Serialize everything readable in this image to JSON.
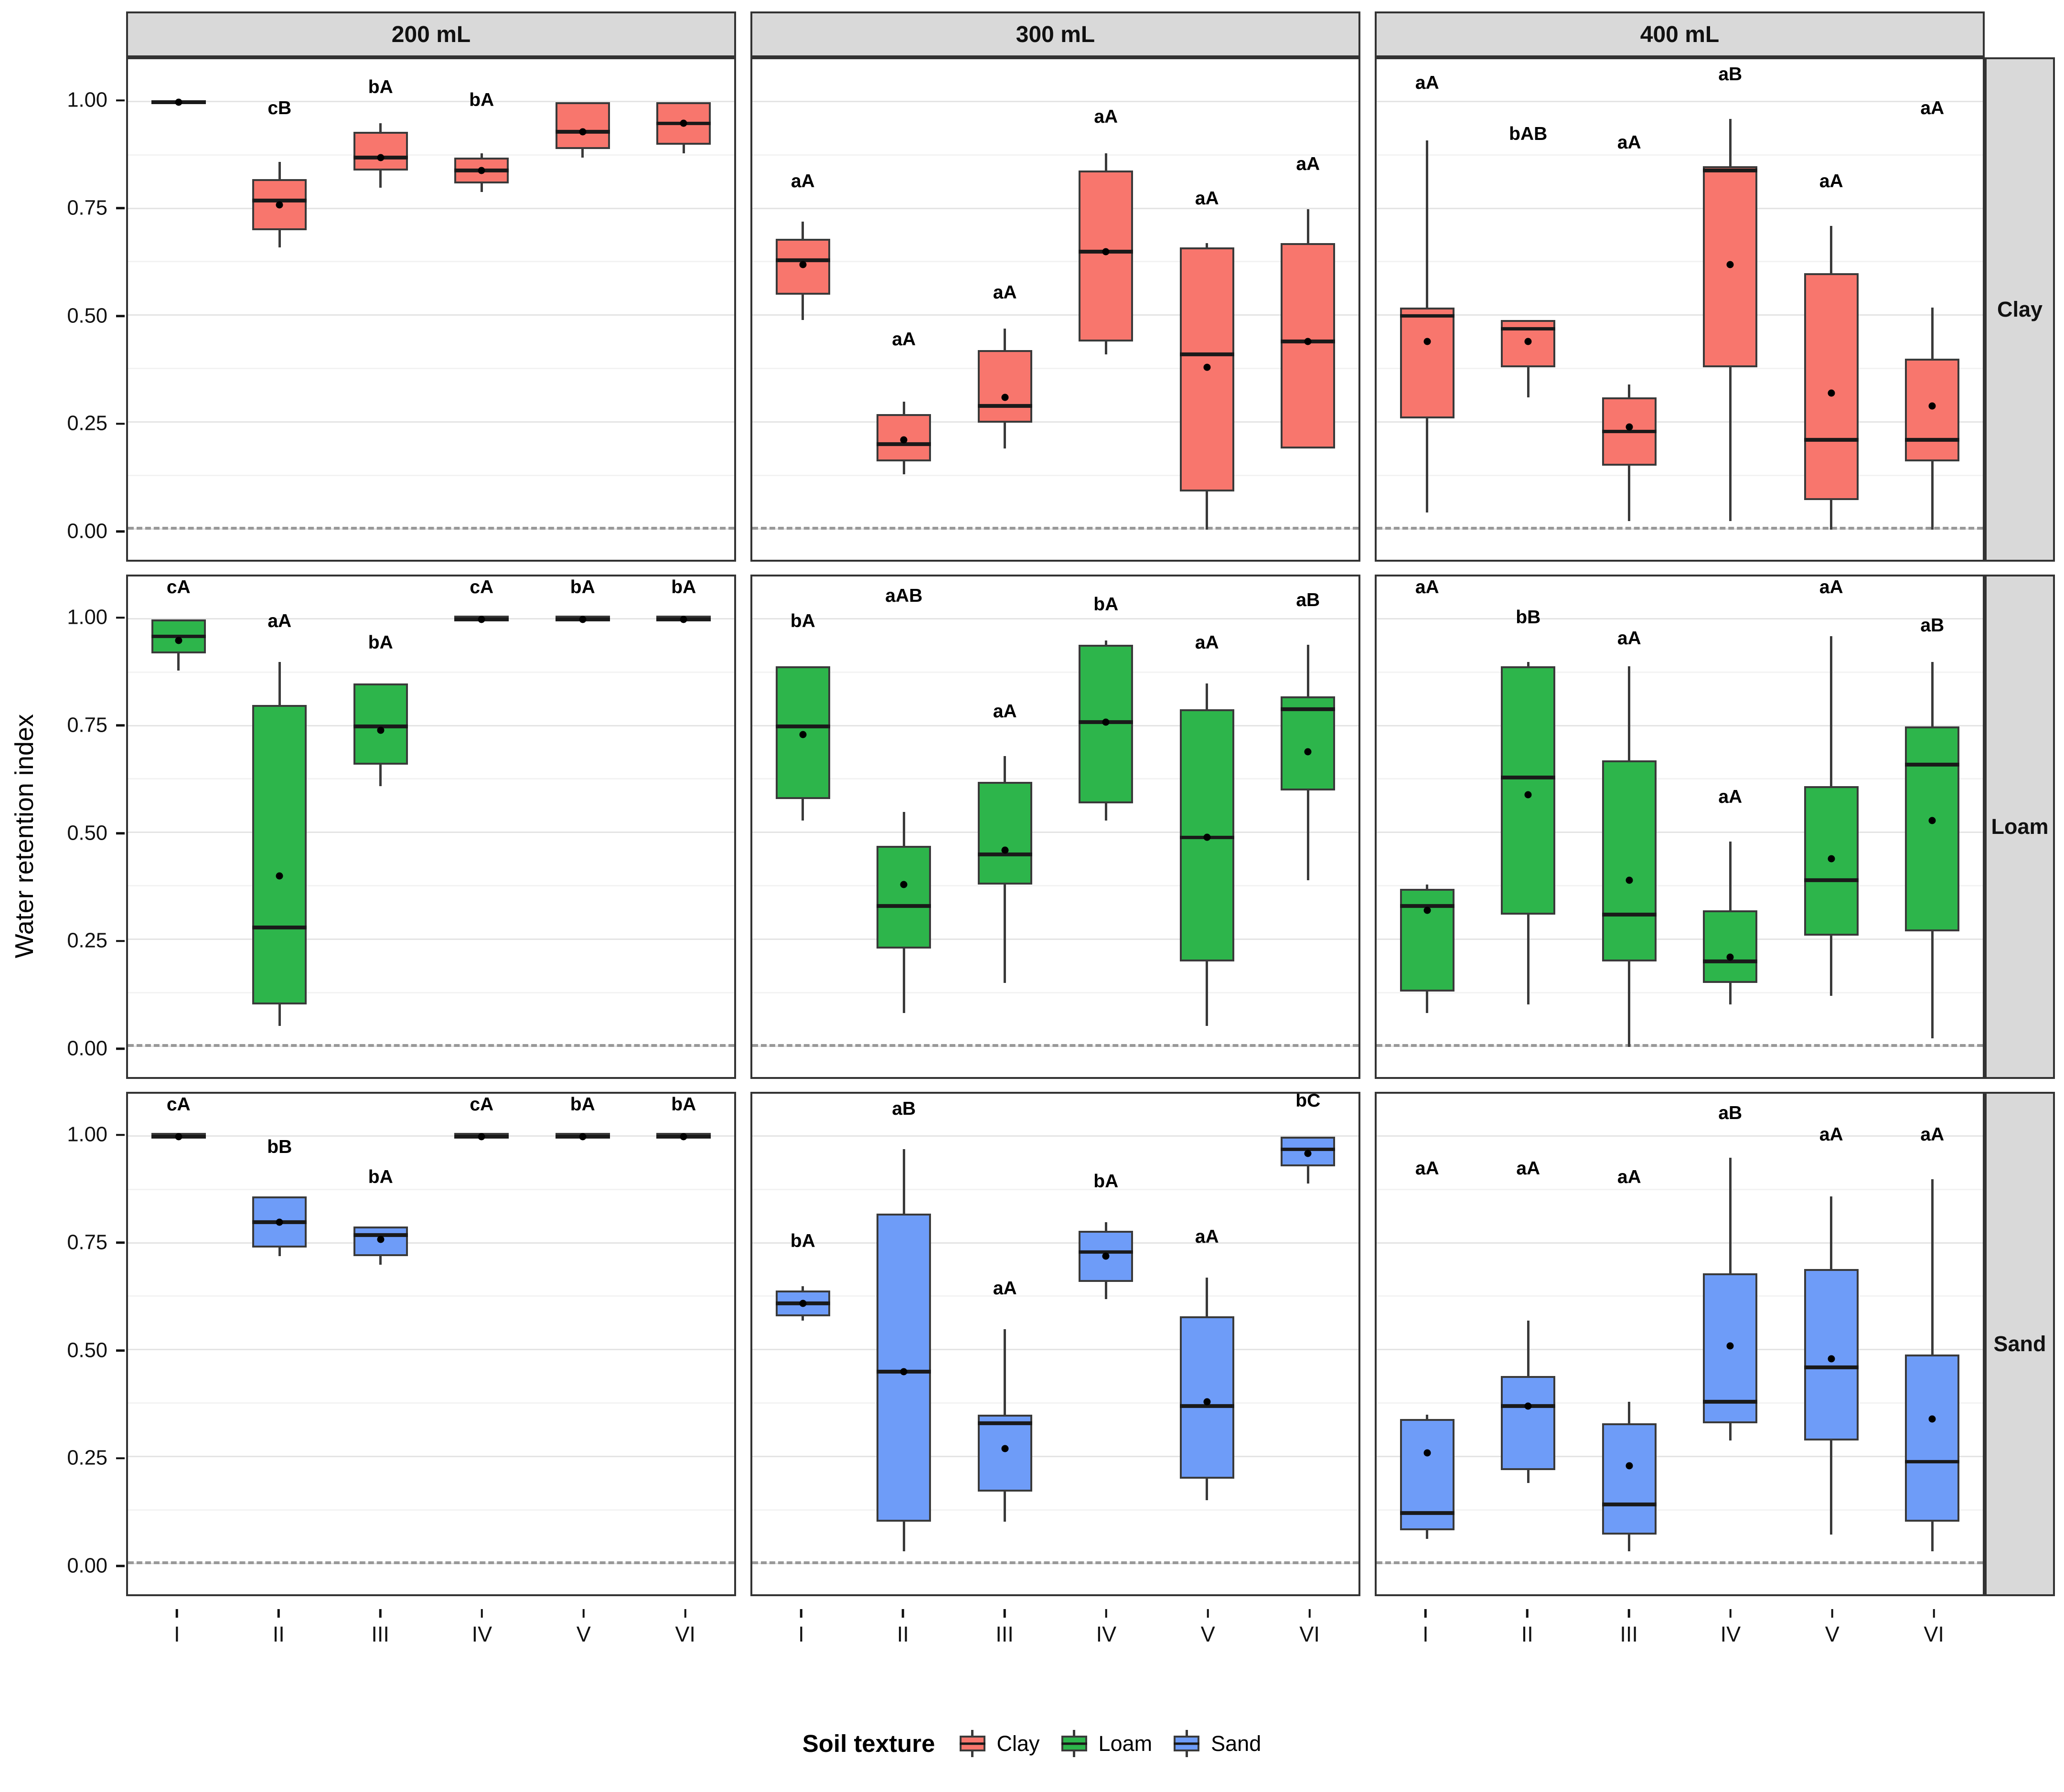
{
  "y_axis": {
    "title": "Water retention index",
    "ticks": [
      {
        "label": "1.00",
        "value": 1.0
      },
      {
        "label": "0.75",
        "value": 0.75
      },
      {
        "label": "0.50",
        "value": 0.5
      },
      {
        "label": "0.25",
        "value": 0.25
      },
      {
        "label": "0.00",
        "value": 0.0
      }
    ]
  },
  "x_axis": {
    "categories": [
      "I",
      "II",
      "III",
      "IV",
      "V",
      "VI"
    ]
  },
  "facets": {
    "columns": [
      "200 mL",
      "300 mL",
      "400 mL"
    ],
    "rows": [
      "Clay",
      "Loam",
      "Sand"
    ]
  },
  "legend": {
    "title": "Soil texture",
    "items": [
      {
        "label": "Clay",
        "color": "#F8766D"
      },
      {
        "label": "Loam",
        "color": "#2DB54B"
      },
      {
        "label": "Sand",
        "color": "#6E9CF8"
      }
    ]
  },
  "chart_data": {
    "type": "boxplot",
    "title": "",
    "ylabel": "Water retention index",
    "y_range": [
      -0.07,
      1.1
    ],
    "y_major_gridlines": [
      0,
      0.25,
      0.5,
      0.75,
      1.0
    ],
    "y_minor_gridlines": [
      0.125,
      0.375,
      0.625,
      0.875
    ],
    "reference_line_y": 0,
    "facet_columns": [
      "200 mL",
      "300 mL",
      "400 mL"
    ],
    "facet_rows": [
      "Clay",
      "Loam",
      "Sand"
    ],
    "x_categories": [
      "I",
      "II",
      "III",
      "IV",
      "V",
      "VI"
    ],
    "panels": [
      {
        "row": "Clay",
        "column": "200 mL",
        "color": "#F8766D",
        "boxes": [
          {
            "x": "I",
            "low": 0.995,
            "q1": 0.995,
            "median": 1.0,
            "q3": 1.0,
            "high": 1.0,
            "mean": 1.0,
            "label": "",
            "label_y": 0
          },
          {
            "x": "II",
            "low": 0.66,
            "q1": 0.7,
            "median": 0.77,
            "q3": 0.82,
            "high": 0.86,
            "mean": 0.76,
            "label": "cB",
            "label_y": 0.96
          },
          {
            "x": "III",
            "low": 0.8,
            "q1": 0.84,
            "median": 0.87,
            "q3": 0.93,
            "high": 0.95,
            "mean": 0.87,
            "label": "bA",
            "label_y": 1.01
          },
          {
            "x": "IV",
            "low": 0.79,
            "q1": 0.81,
            "median": 0.84,
            "q3": 0.87,
            "high": 0.88,
            "mean": 0.84,
            "label": "bA",
            "label_y": 0.98
          },
          {
            "x": "V",
            "low": 0.87,
            "q1": 0.89,
            "median": 0.93,
            "q3": 1.0,
            "high": 1.0,
            "mean": 0.93,
            "label": "",
            "label_y": 0
          },
          {
            "x": "VI",
            "low": 0.88,
            "q1": 0.9,
            "median": 0.95,
            "q3": 1.0,
            "high": 1.0,
            "mean": 0.95,
            "label": "",
            "label_y": 0
          }
        ]
      },
      {
        "row": "Clay",
        "column": "300 mL",
        "color": "#F8766D",
        "boxes": [
          {
            "x": "I",
            "low": 0.49,
            "q1": 0.55,
            "median": 0.63,
            "q3": 0.68,
            "high": 0.72,
            "mean": 0.62,
            "label": "aA",
            "label_y": 0.79
          },
          {
            "x": "II",
            "low": 0.13,
            "q1": 0.16,
            "median": 0.2,
            "q3": 0.27,
            "high": 0.3,
            "mean": 0.21,
            "label": "aA",
            "label_y": 0.42
          },
          {
            "x": "III",
            "low": 0.19,
            "q1": 0.25,
            "median": 0.29,
            "q3": 0.42,
            "high": 0.47,
            "mean": 0.31,
            "label": "aA",
            "label_y": 0.53
          },
          {
            "x": "IV",
            "low": 0.41,
            "q1": 0.44,
            "median": 0.65,
            "q3": 0.84,
            "high": 0.88,
            "mean": 0.65,
            "label": "aA",
            "label_y": 0.94
          },
          {
            "x": "V",
            "low": 0.0,
            "q1": 0.09,
            "median": 0.41,
            "q3": 0.66,
            "high": 0.67,
            "mean": 0.38,
            "label": "aA",
            "label_y": 0.75
          },
          {
            "x": "VI",
            "low": 0.19,
            "q1": 0.19,
            "median": 0.44,
            "q3": 0.67,
            "high": 0.75,
            "mean": 0.44,
            "label": "aA",
            "label_y": 0.83
          }
        ]
      },
      {
        "row": "Clay",
        "column": "400 mL",
        "color": "#F8766D",
        "boxes": [
          {
            "x": "I",
            "low": 0.04,
            "q1": 0.26,
            "median": 0.5,
            "q3": 0.52,
            "high": 0.91,
            "mean": 0.44,
            "label": "aA",
            "label_y": 1.02
          },
          {
            "x": "II",
            "low": 0.31,
            "q1": 0.38,
            "median": 0.47,
            "q3": 0.49,
            "high": 0.49,
            "mean": 0.44,
            "label": "bAB",
            "label_y": 0.9
          },
          {
            "x": "III",
            "low": 0.02,
            "q1": 0.15,
            "median": 0.23,
            "q3": 0.31,
            "high": 0.34,
            "mean": 0.24,
            "label": "aA",
            "label_y": 0.88
          },
          {
            "x": "IV",
            "low": 0.02,
            "q1": 0.38,
            "median": 0.84,
            "q3": 0.85,
            "high": 0.96,
            "mean": 0.62,
            "label": "aB",
            "label_y": 1.04
          },
          {
            "x": "V",
            "low": 0.0,
            "q1": 0.07,
            "median": 0.21,
            "q3": 0.6,
            "high": 0.71,
            "mean": 0.32,
            "label": "aA",
            "label_y": 0.79
          },
          {
            "x": "VI",
            "low": 0.0,
            "q1": 0.16,
            "median": 0.21,
            "q3": 0.4,
            "high": 0.52,
            "mean": 0.29,
            "label": "aA",
            "label_y": 0.96
          }
        ]
      },
      {
        "row": "Loam",
        "column": "200 mL",
        "color": "#2DB54B",
        "boxes": [
          {
            "x": "I",
            "low": 0.88,
            "q1": 0.92,
            "median": 0.96,
            "q3": 1.0,
            "high": 1.0,
            "mean": 0.95,
            "label": "cA",
            "label_y": 1.05
          },
          {
            "x": "II",
            "low": 0.05,
            "q1": 0.1,
            "median": 0.28,
            "q3": 0.8,
            "high": 0.9,
            "mean": 0.4,
            "label": "aA",
            "label_y": 0.97
          },
          {
            "x": "III",
            "low": 0.61,
            "q1": 0.66,
            "median": 0.75,
            "q3": 0.85,
            "high": 0.85,
            "mean": 0.74,
            "label": "bA",
            "label_y": 0.92
          },
          {
            "x": "IV",
            "low": 1.0,
            "q1": 1.0,
            "median": 1.0,
            "q3": 1.0,
            "high": 1.0,
            "mean": 1.0,
            "label": "cA",
            "label_y": 1.05
          },
          {
            "x": "V",
            "low": 1.0,
            "q1": 1.0,
            "median": 1.0,
            "q3": 1.0,
            "high": 1.0,
            "mean": 1.0,
            "label": "bA",
            "label_y": 1.05
          },
          {
            "x": "VI",
            "low": 1.0,
            "q1": 1.0,
            "median": 1.0,
            "q3": 1.0,
            "high": 1.0,
            "mean": 1.0,
            "label": "bA",
            "label_y": 1.05
          }
        ]
      },
      {
        "row": "Loam",
        "column": "300 mL",
        "color": "#2DB54B",
        "boxes": [
          {
            "x": "I",
            "low": 0.53,
            "q1": 0.58,
            "median": 0.75,
            "q3": 0.89,
            "high": 0.89,
            "mean": 0.73,
            "label": "bA",
            "label_y": 0.97
          },
          {
            "x": "II",
            "low": 0.08,
            "q1": 0.23,
            "median": 0.33,
            "q3": 0.47,
            "high": 0.55,
            "mean": 0.38,
            "label": "aAB",
            "label_y": 1.03
          },
          {
            "x": "III",
            "low": 0.15,
            "q1": 0.38,
            "median": 0.45,
            "q3": 0.62,
            "high": 0.68,
            "mean": 0.46,
            "label": "aA",
            "label_y": 0.76
          },
          {
            "x": "IV",
            "low": 0.53,
            "q1": 0.57,
            "median": 0.76,
            "q3": 0.94,
            "high": 0.95,
            "mean": 0.76,
            "label": "bA",
            "label_y": 1.01
          },
          {
            "x": "V",
            "low": 0.05,
            "q1": 0.2,
            "median": 0.49,
            "q3": 0.79,
            "high": 0.85,
            "mean": 0.49,
            "label": "aA",
            "label_y": 0.92
          },
          {
            "x": "VI",
            "low": 0.39,
            "q1": 0.6,
            "median": 0.79,
            "q3": 0.82,
            "high": 0.94,
            "mean": 0.69,
            "label": "aB",
            "label_y": 1.02
          }
        ]
      },
      {
        "row": "Loam",
        "column": "400 mL",
        "color": "#2DB54B",
        "boxes": [
          {
            "x": "I",
            "low": 0.08,
            "q1": 0.13,
            "median": 0.33,
            "q3": 0.37,
            "high": 0.38,
            "mean": 0.32,
            "label": "aA",
            "label_y": 1.05
          },
          {
            "x": "II",
            "low": 0.1,
            "q1": 0.31,
            "median": 0.63,
            "q3": 0.89,
            "high": 0.9,
            "mean": 0.59,
            "label": "bB",
            "label_y": 0.98
          },
          {
            "x": "III",
            "low": 0.0,
            "q1": 0.2,
            "median": 0.31,
            "q3": 0.67,
            "high": 0.89,
            "mean": 0.39,
            "label": "aA",
            "label_y": 0.93
          },
          {
            "x": "IV",
            "low": 0.1,
            "q1": 0.15,
            "median": 0.2,
            "q3": 0.32,
            "high": 0.48,
            "mean": 0.21,
            "label": "aA",
            "label_y": 0.56
          },
          {
            "x": "V",
            "low": 0.12,
            "q1": 0.26,
            "median": 0.39,
            "q3": 0.61,
            "high": 0.96,
            "mean": 0.44,
            "label": "aA",
            "label_y": 1.05
          },
          {
            "x": "VI",
            "low": 0.02,
            "q1": 0.27,
            "median": 0.66,
            "q3": 0.75,
            "high": 0.9,
            "mean": 0.53,
            "label": "aB",
            "label_y": 0.96
          }
        ]
      },
      {
        "row": "Sand",
        "column": "200 mL",
        "color": "#6E9CF8",
        "boxes": [
          {
            "x": "I",
            "low": 1.0,
            "q1": 1.0,
            "median": 1.0,
            "q3": 1.0,
            "high": 1.0,
            "mean": 1.0,
            "label": "cA",
            "label_y": 1.05
          },
          {
            "x": "II",
            "low": 0.72,
            "q1": 0.74,
            "median": 0.8,
            "q3": 0.86,
            "high": 0.86,
            "mean": 0.8,
            "label": "bB",
            "label_y": 0.95
          },
          {
            "x": "III",
            "low": 0.7,
            "q1": 0.72,
            "median": 0.77,
            "q3": 0.79,
            "high": 0.79,
            "mean": 0.76,
            "label": "bA",
            "label_y": 0.88
          },
          {
            "x": "IV",
            "low": 1.0,
            "q1": 1.0,
            "median": 1.0,
            "q3": 1.0,
            "high": 1.0,
            "mean": 1.0,
            "label": "cA",
            "label_y": 1.05
          },
          {
            "x": "V",
            "low": 1.0,
            "q1": 1.0,
            "median": 1.0,
            "q3": 1.0,
            "high": 1.0,
            "mean": 1.0,
            "label": "bA",
            "label_y": 1.05
          },
          {
            "x": "VI",
            "low": 1.0,
            "q1": 1.0,
            "median": 1.0,
            "q3": 1.0,
            "high": 1.0,
            "mean": 1.0,
            "label": "bA",
            "label_y": 1.05
          }
        ]
      },
      {
        "row": "Sand",
        "column": "300 mL",
        "color": "#6E9CF8",
        "boxes": [
          {
            "x": "I",
            "low": 0.57,
            "q1": 0.58,
            "median": 0.61,
            "q3": 0.64,
            "high": 0.65,
            "mean": 0.61,
            "label": "bA",
            "label_y": 0.73
          },
          {
            "x": "II",
            "low": 0.03,
            "q1": 0.1,
            "median": 0.45,
            "q3": 0.82,
            "high": 0.97,
            "mean": 0.45,
            "label": "aB",
            "label_y": 1.04
          },
          {
            "x": "III",
            "low": 0.1,
            "q1": 0.17,
            "median": 0.33,
            "q3": 0.35,
            "high": 0.55,
            "mean": 0.27,
            "label": "aA",
            "label_y": 0.62
          },
          {
            "x": "IV",
            "low": 0.62,
            "q1": 0.66,
            "median": 0.73,
            "q3": 0.78,
            "high": 0.8,
            "mean": 0.72,
            "label": "bA",
            "label_y": 0.87
          },
          {
            "x": "V",
            "low": 0.15,
            "q1": 0.2,
            "median": 0.37,
            "q3": 0.58,
            "high": 0.67,
            "mean": 0.38,
            "label": "aA",
            "label_y": 0.74
          },
          {
            "x": "VI",
            "low": 0.89,
            "q1": 0.93,
            "median": 0.97,
            "q3": 1.0,
            "high": 1.0,
            "mean": 0.96,
            "label": "bC",
            "label_y": 1.06
          }
        ]
      },
      {
        "row": "Sand",
        "column": "400 mL",
        "color": "#6E9CF8",
        "boxes": [
          {
            "x": "I",
            "low": 0.06,
            "q1": 0.08,
            "median": 0.12,
            "q3": 0.34,
            "high": 0.35,
            "mean": 0.26,
            "label": "aA",
            "label_y": 0.9
          },
          {
            "x": "II",
            "low": 0.19,
            "q1": 0.22,
            "median": 0.37,
            "q3": 0.44,
            "high": 0.57,
            "mean": 0.37,
            "label": "aA",
            "label_y": 0.9
          },
          {
            "x": "III",
            "low": 0.03,
            "q1": 0.07,
            "median": 0.14,
            "q3": 0.33,
            "high": 0.38,
            "mean": 0.23,
            "label": "aA",
            "label_y": 0.88
          },
          {
            "x": "IV",
            "low": 0.29,
            "q1": 0.33,
            "median": 0.38,
            "q3": 0.68,
            "high": 0.95,
            "mean": 0.51,
            "label": "aB",
            "label_y": 1.03
          },
          {
            "x": "V",
            "low": 0.07,
            "q1": 0.29,
            "median": 0.46,
            "q3": 0.69,
            "high": 0.86,
            "mean": 0.48,
            "label": "aA",
            "label_y": 0.98
          },
          {
            "x": "VI",
            "low": 0.03,
            "q1": 0.1,
            "median": 0.24,
            "q3": 0.49,
            "high": 0.9,
            "mean": 0.34,
            "label": "aA",
            "label_y": 0.98
          }
        ]
      }
    ]
  }
}
